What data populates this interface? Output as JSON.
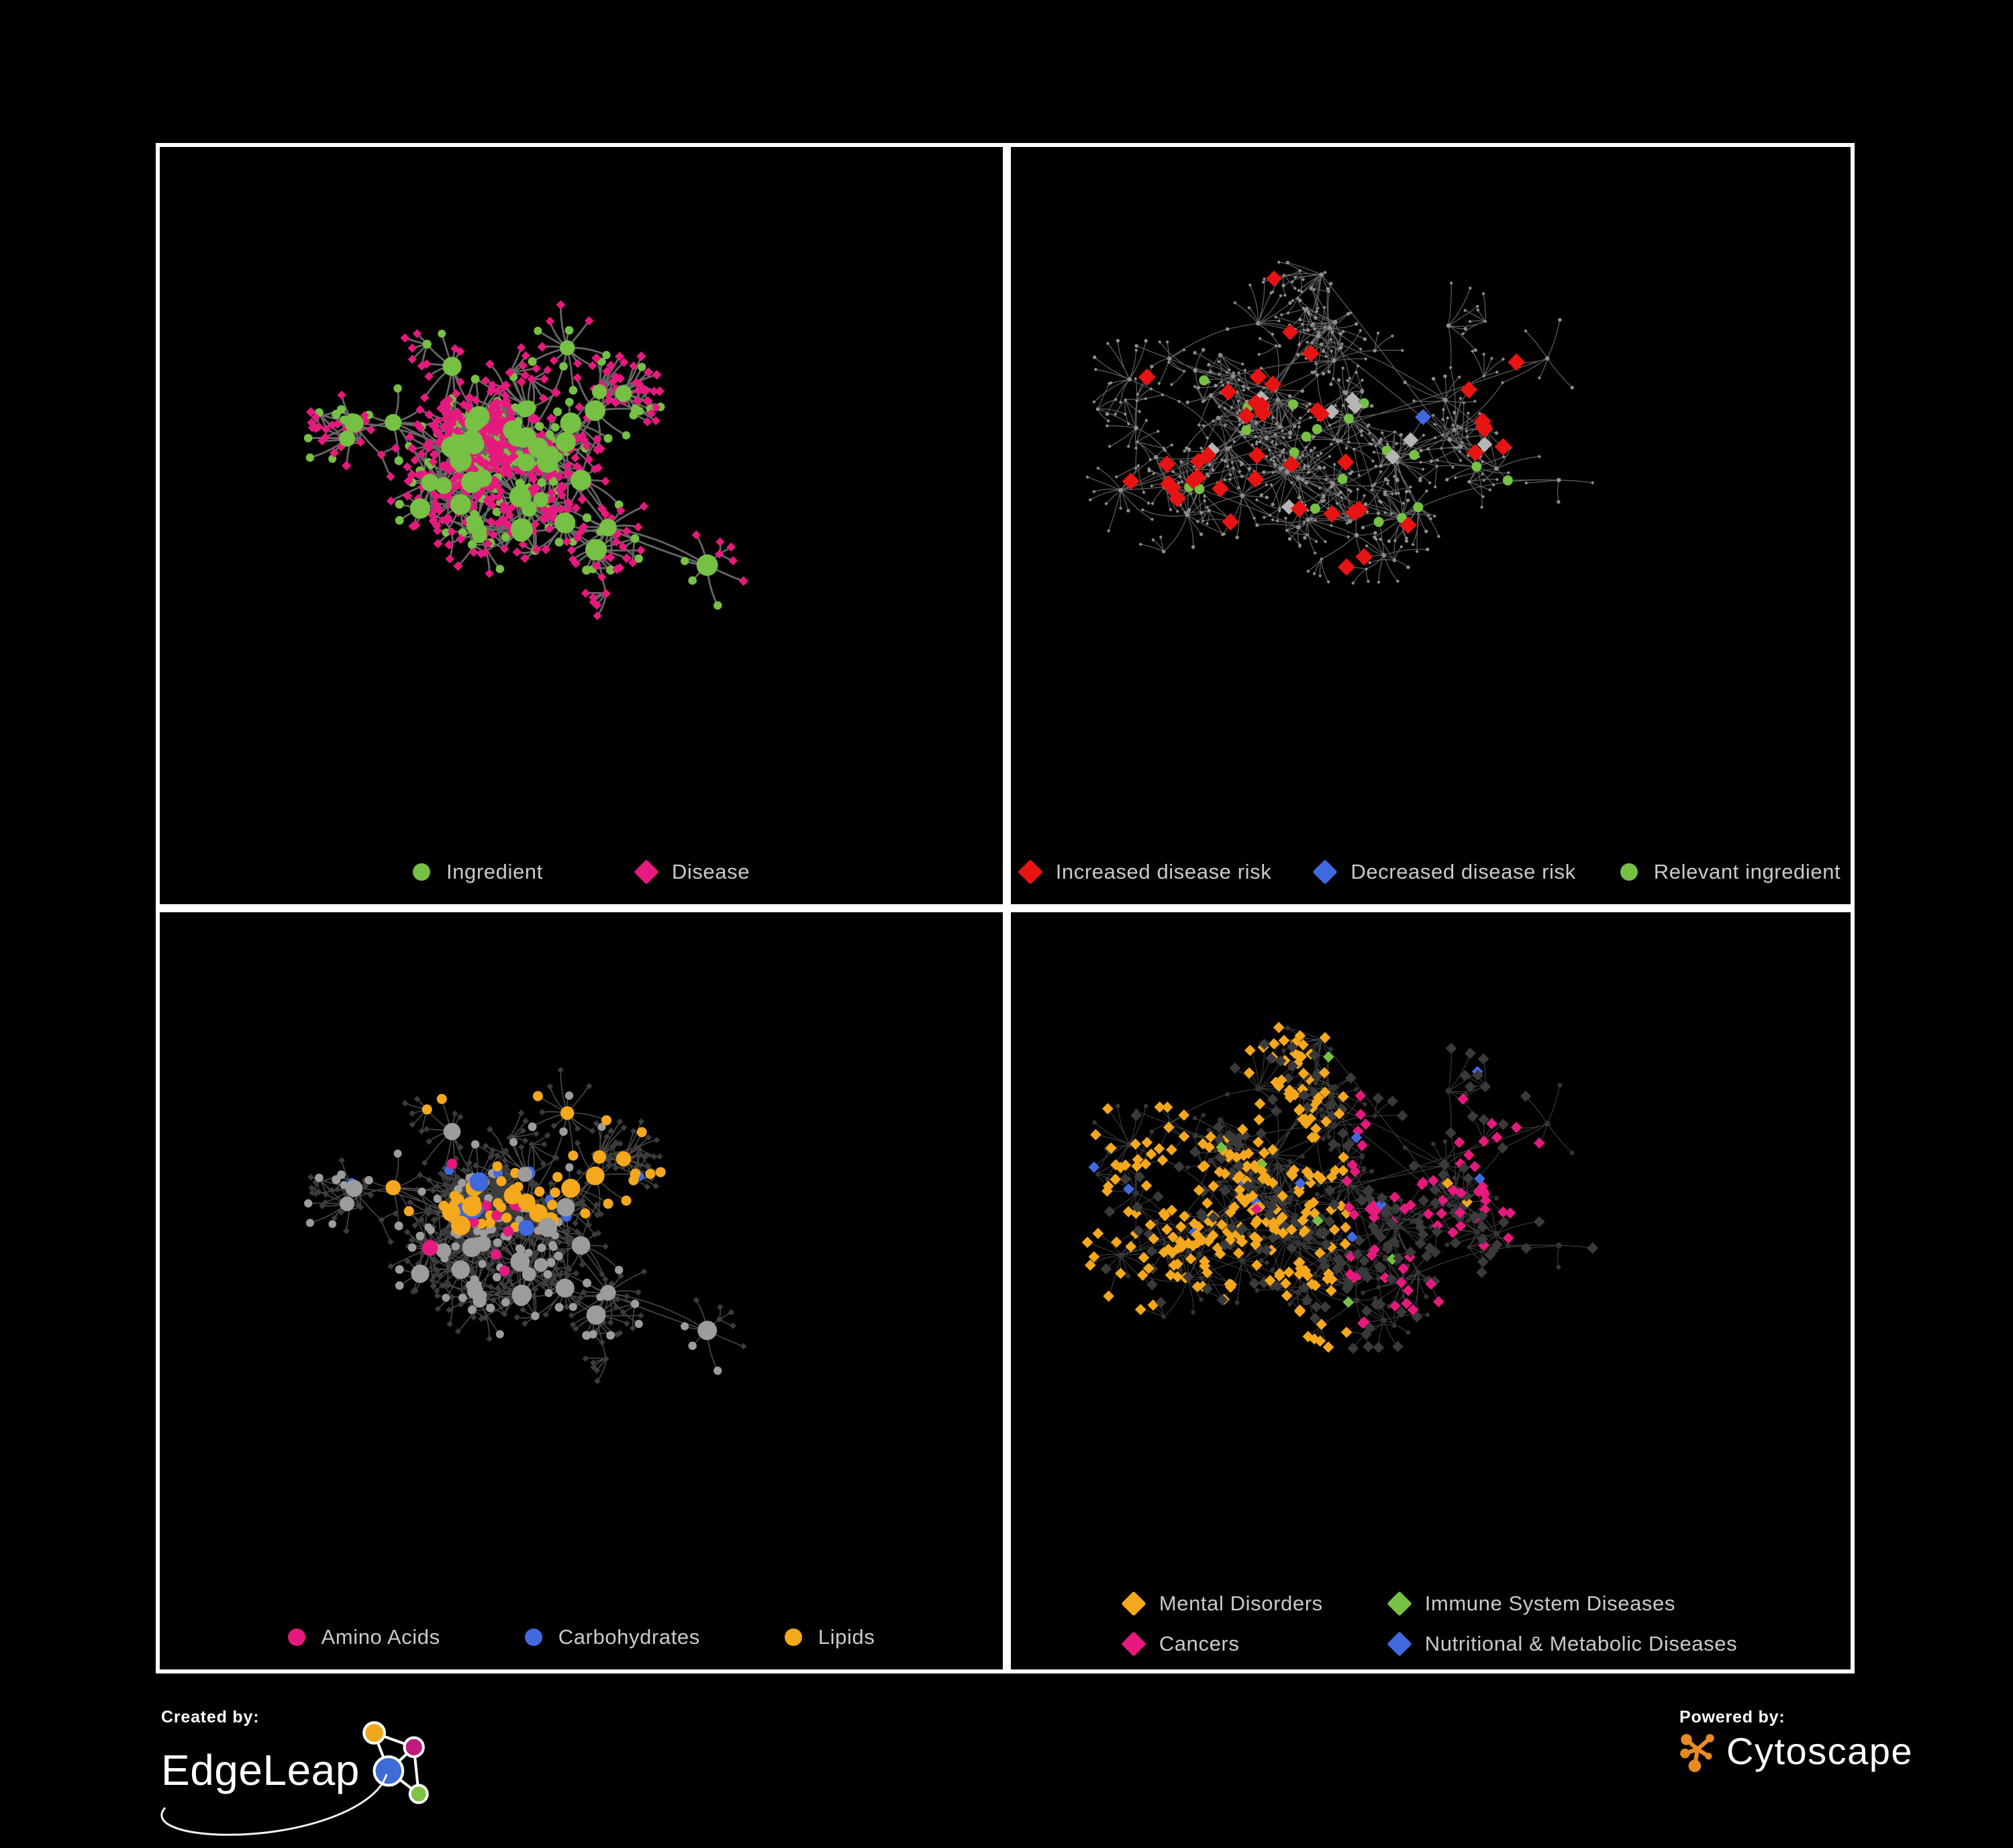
{
  "colors": {
    "green": "#76C043",
    "pink": "#E6197E",
    "red": "#E81313",
    "blue": "#4169DF",
    "orange": "#F5A81C",
    "lightGrayDiamond": "#B5B5B5",
    "baseGrayNode": "#8E8E8E",
    "midGrayNode": "#9C9C9C",
    "dimNode": "#3C3C3C",
    "darkDiamond": "#3A3A3A",
    "edgeBold": "#6B6B6B",
    "edgeFine": "#8C8C8C",
    "legendText": "#CACACA",
    "panelBorder": "#FFFFFF",
    "background": "#000000",
    "cytoscapeOrange": "#E98A20",
    "edgeleapBlue": "#3E6BD5",
    "edgeleapMagenta": "#C2197C",
    "edgeleapOrange": "#F2A71B",
    "edgeleapGreen": "#7DC242"
  },
  "panels": [
    {
      "title": "ingredient-disease-network",
      "legend": [
        {
          "label": "Ingredient",
          "shape": "circle",
          "color": "#76C043"
        },
        {
          "label": "Disease",
          "shape": "diamond",
          "color": "#E6197E"
        }
      ],
      "network": {
        "seed": 11,
        "hubs": 48,
        "hubDist": 115,
        "leafMin": 4,
        "leafVar": 12,
        "leafDiamond": 0.72,
        "style": "ingredients"
      }
    },
    {
      "title": "disease-risk-network",
      "legend": [
        {
          "label": "Increased disease risk",
          "shape": "diamond",
          "color": "#E81313"
        },
        {
          "label": "Decreased disease risk",
          "shape": "diamond",
          "color": "#4169DF"
        },
        {
          "label": "Relevant ingredient",
          "shape": "circle",
          "color": "#76C043"
        }
      ],
      "network": {
        "seed": 23,
        "hubs": 54,
        "hubDist": 125,
        "leafMin": 3,
        "leafVar": 11,
        "leafDiamond": 0.72,
        "style": "risk"
      }
    },
    {
      "title": "nutrient-class-network",
      "legend": [
        {
          "label": "Amino Acids",
          "shape": "circle",
          "color": "#E6197E"
        },
        {
          "label": "Carbohydrates",
          "shape": "circle",
          "color": "#4169DF"
        },
        {
          "label": "Lipids",
          "shape": "circle",
          "color": "#F5A81C"
        }
      ],
      "network": {
        "seed": 11,
        "hubs": 48,
        "hubDist": 115,
        "leafMin": 4,
        "leafVar": 12,
        "leafDiamond": 0.72,
        "style": "nutrients"
      }
    },
    {
      "title": "disease-category-network",
      "legend": [
        {
          "label": "Mental Disorders",
          "shape": "diamond",
          "color": "#F5A81C"
        },
        {
          "label": "Immune System Diseases",
          "shape": "diamond",
          "color": "#76C043"
        },
        {
          "label": "Cancers",
          "shape": "diamond",
          "color": "#E6197E"
        },
        {
          "label": "Nutritional & Metabolic Diseases",
          "shape": "diamond",
          "color": "#4169DF"
        }
      ],
      "network": {
        "seed": 23,
        "hubs": 54,
        "hubDist": 125,
        "leafMin": 3,
        "leafVar": 11,
        "leafDiamond": 0.72,
        "style": "categories"
      }
    }
  ],
  "footer": {
    "created_by": "Created by:",
    "brand": "EdgeLeap",
    "powered_by": "Powered by:",
    "engine": "Cytoscape"
  }
}
